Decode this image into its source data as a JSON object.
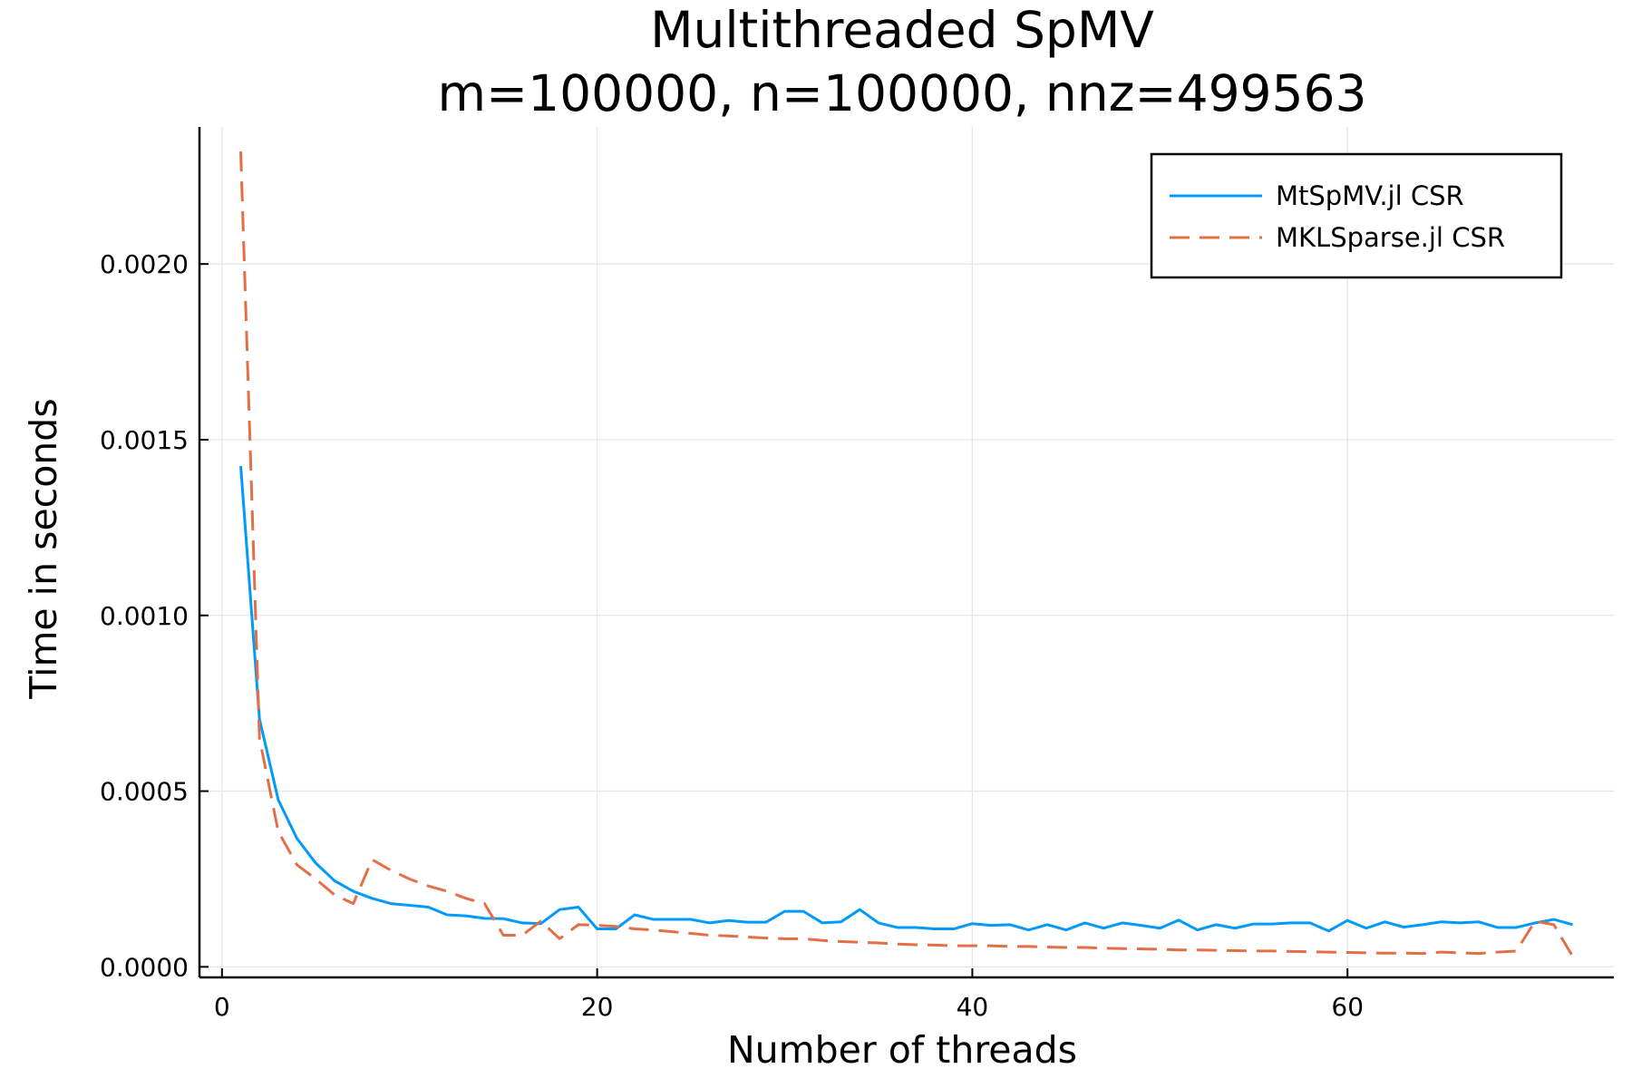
{
  "chart_data": {
    "type": "line",
    "title": "Multithreaded SpMV",
    "subtitle": "m=100000, n=100000, nnz=499563",
    "xlabel": "Number of threads",
    "ylabel": "Time in seconds",
    "xlim": [
      -1.2,
      74.2
    ],
    "ylim": [
      -3e-05,
      0.00239
    ],
    "xticks": [
      0,
      20,
      40,
      60
    ],
    "xtick_labels": [
      "0",
      "20",
      "40",
      "60"
    ],
    "yticks": [
      0,
      0.0005,
      0.001,
      0.0015,
      0.002
    ],
    "ytick_labels": [
      "0.0000",
      "0.0005",
      "0.0010",
      "0.0015",
      "0.0020"
    ],
    "grid": true,
    "legend_position": "top-right",
    "series": [
      {
        "name": "MtSpMV.jl CSR",
        "color": "#009AFA",
        "dash": "solid",
        "x": [
          1,
          2,
          3,
          4,
          5,
          6,
          7,
          8,
          9,
          10,
          11,
          12,
          13,
          14,
          15,
          16,
          17,
          18,
          19,
          20,
          21,
          22,
          23,
          24,
          25,
          26,
          27,
          28,
          29,
          30,
          31,
          32,
          33,
          34,
          35,
          36,
          37,
          38,
          39,
          40,
          41,
          42,
          43,
          44,
          45,
          46,
          47,
          48,
          49,
          50,
          51,
          52,
          53,
          54,
          55,
          56,
          57,
          58,
          59,
          60,
          61,
          62,
          63,
          64,
          65,
          66,
          67,
          68,
          69,
          70,
          71,
          72
        ],
        "values": [
          0.001425,
          0.000705,
          0.000475,
          0.000365,
          0.000295,
          0.000245,
          0.000215,
          0.000195,
          0.00018,
          0.000175,
          0.00017,
          0.000148,
          0.000145,
          0.000138,
          0.000137,
          0.000125,
          0.000123,
          0.000163,
          0.00017,
          0.000108,
          0.000108,
          0.000148,
          0.000135,
          0.000135,
          0.000135,
          0.000125,
          0.000132,
          0.000127,
          0.000127,
          0.000158,
          0.000158,
          0.000125,
          0.000128,
          0.000163,
          0.000125,
          0.000112,
          0.000112,
          0.000108,
          0.000108,
          0.000123,
          0.000118,
          0.00012,
          0.000105,
          0.00012,
          0.000105,
          0.000125,
          0.00011,
          0.000125,
          0.000118,
          0.00011,
          0.000133,
          0.000105,
          0.00012,
          0.00011,
          0.000122,
          0.000122,
          0.000125,
          0.000125,
          0.000102,
          0.000132,
          0.00011,
          0.000128,
          0.000113,
          0.00012,
          0.000128,
          0.000125,
          0.000128,
          0.000112,
          0.000112,
          0.000125,
          0.000135,
          0.00012
        ]
      },
      {
        "name": "MKLSparse.jl CSR",
        "color": "#E26F46",
        "dash": "dashed",
        "x": [
          1,
          2,
          3,
          4,
          5,
          6,
          7,
          8,
          9,
          10,
          11,
          12,
          13,
          14,
          15,
          16,
          17,
          18,
          19,
          20,
          21,
          22,
          23,
          24,
          25,
          26,
          27,
          28,
          29,
          30,
          31,
          32,
          33,
          34,
          35,
          36,
          37,
          38,
          39,
          40,
          41,
          42,
          43,
          44,
          45,
          46,
          47,
          48,
          49,
          50,
          51,
          52,
          53,
          54,
          55,
          56,
          57,
          58,
          59,
          60,
          61,
          62,
          63,
          64,
          65,
          66,
          67,
          68,
          69,
          70,
          71,
          72
        ],
        "values": [
          0.00232,
          0.00065,
          0.000385,
          0.00029,
          0.00025,
          0.000205,
          0.00018,
          0.000305,
          0.000275,
          0.00025,
          0.00023,
          0.000215,
          0.000195,
          0.00018,
          9e-05,
          9e-05,
          0.00013,
          8e-05,
          0.00012,
          0.000118,
          0.000115,
          0.000108,
          0.000105,
          0.0001,
          9.5e-05,
          9e-05,
          8.8e-05,
          8.5e-05,
          8.2e-05,
          8e-05,
          8e-05,
          7.5e-05,
          7.2e-05,
          7e-05,
          6.8e-05,
          6.5e-05,
          6.3e-05,
          6.2e-05,
          6e-05,
          6e-05,
          6e-05,
          5.8e-05,
          5.8e-05,
          5.6e-05,
          5.5e-05,
          5.5e-05,
          5.3e-05,
          5.2e-05,
          5.1e-05,
          5e-05,
          4.8e-05,
          4.8e-05,
          4.7e-05,
          4.6e-05,
          4.5e-05,
          4.5e-05,
          4.4e-05,
          4.3e-05,
          4.2e-05,
          4.1e-05,
          4e-05,
          3.9e-05,
          3.9e-05,
          3.8e-05,
          4.2e-05,
          4e-05,
          3.8e-05,
          4.2e-05,
          4.5e-05,
          0.00013,
          0.00012,
          3e-05
        ]
      }
    ]
  }
}
